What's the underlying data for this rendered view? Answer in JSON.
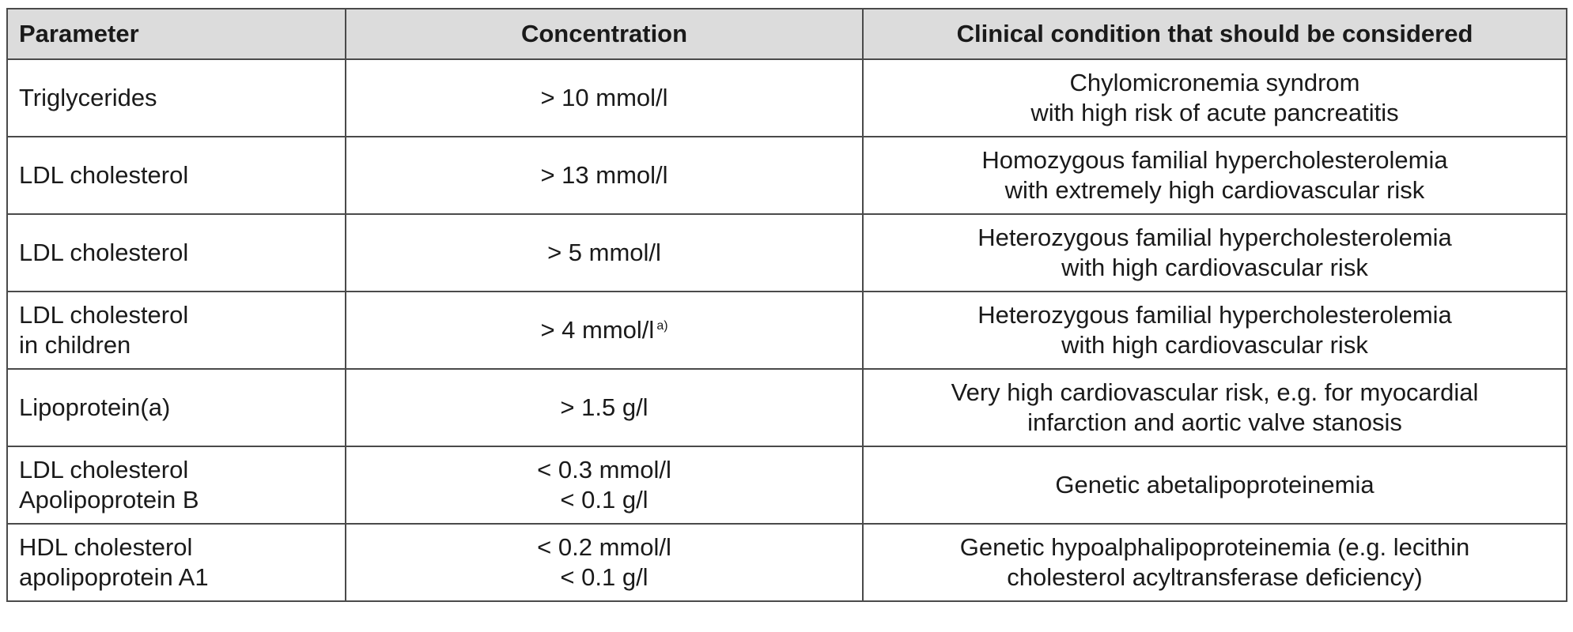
{
  "table": {
    "headers": {
      "parameter": "Parameter",
      "concentration": "Concentration",
      "condition": "Clinical condition that should be considered"
    },
    "rows": [
      {
        "parameter": [
          "Triglycerides"
        ],
        "concentration": [
          "> 10 mmol/l"
        ],
        "footnote": "",
        "condition": [
          "Chylomicronemia syndrom",
          "with high risk of acute pancreatitis"
        ]
      },
      {
        "parameter": [
          "LDL cholesterol"
        ],
        "concentration": [
          "> 13 mmol/l"
        ],
        "footnote": "",
        "condition": [
          "Homozygous familial hypercholesterolemia",
          "with extremely high cardiovascular risk"
        ]
      },
      {
        "parameter": [
          "LDL cholesterol"
        ],
        "concentration": [
          "> 5 mmol/l"
        ],
        "footnote": "",
        "condition": [
          "Heterozygous familial hypercholesterolemia",
          "with high cardiovascular risk"
        ]
      },
      {
        "parameter": [
          "LDL cholesterol",
          "in children"
        ],
        "concentration": [
          "> 4 mmol/l"
        ],
        "footnote": "a)",
        "condition": [
          "Heterozygous familial hypercholesterolemia",
          "with high cardiovascular risk"
        ]
      },
      {
        "parameter": [
          "Lipoprotein(a)"
        ],
        "concentration": [
          "> 1.5 g/l"
        ],
        "footnote": "",
        "condition": [
          "Very high cardiovascular risk, e.g. for myocardial",
          "infarction and aortic valve stanosis"
        ]
      },
      {
        "parameter": [
          "LDL cholesterol",
          "Apolipoprotein B"
        ],
        "concentration": [
          "< 0.3 mmol/l",
          "< 0.1 g/l"
        ],
        "footnote": "",
        "condition": [
          "Genetic abetalipoproteinemia"
        ]
      },
      {
        "parameter": [
          "HDL cholesterol",
          "apolipoprotein A1"
        ],
        "concentration": [
          "< 0.2 mmol/l",
          "< 0.1 g/l"
        ],
        "footnote": "",
        "condition": [
          "Genetic hypoalphalipoproteinemia (e.g. lecithin",
          "cholesterol acyltransferase deficiency)"
        ]
      }
    ]
  }
}
